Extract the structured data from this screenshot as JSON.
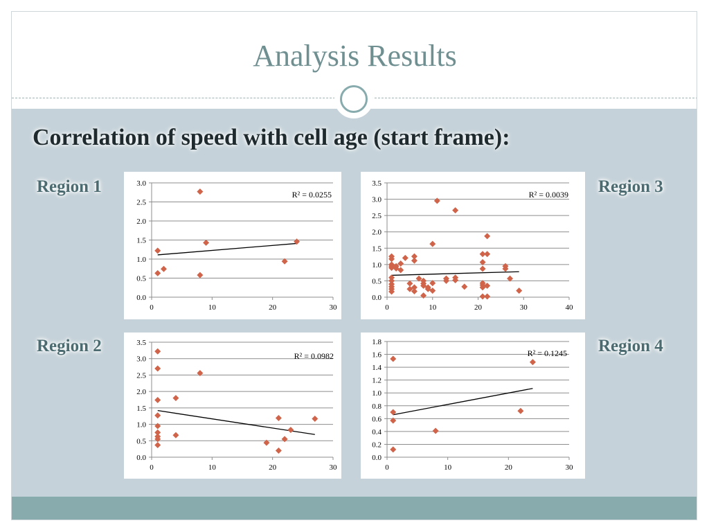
{
  "slide": {
    "title": "Analysis Results",
    "subtitle": "Correlation of speed with cell age (start frame):"
  },
  "regions": [
    "Region 1",
    "Region 2",
    "Region 3",
    "Region 4"
  ],
  "colors": {
    "title": "#6f8f91",
    "band": "#c5d2d9",
    "footer": "#88abad",
    "marker": "#d0644a",
    "trend": "#000000"
  },
  "chart_data": [
    {
      "type": "scatter",
      "region": "Region 1",
      "title": "",
      "xlabel": "",
      "ylabel": "",
      "xlim": [
        0,
        30
      ],
      "ylim": [
        0,
        3.0
      ],
      "xticks": [
        "0",
        "10",
        "20",
        "30"
      ],
      "yticks": [
        "0.0",
        "0.5",
        "1.0",
        "1.5",
        "2.0",
        "2.5",
        "3.0"
      ],
      "grid": "horizontal",
      "r2_label": "R² = 0.0255",
      "points": [
        [
          1,
          1.22
        ],
        [
          1,
          0.63
        ],
        [
          2,
          0.74
        ],
        [
          8,
          2.77
        ],
        [
          8,
          0.58
        ],
        [
          9,
          1.43
        ],
        [
          22,
          0.94
        ],
        [
          24,
          1.46
        ]
      ],
      "trendline": [
        [
          1,
          1.11
        ],
        [
          24,
          1.41
        ]
      ]
    },
    {
      "type": "scatter",
      "region": "Region 2",
      "title": "",
      "xlabel": "",
      "ylabel": "",
      "xlim": [
        0,
        30
      ],
      "ylim": [
        0,
        3.5
      ],
      "xticks": [
        "0",
        "10",
        "20",
        "30"
      ],
      "yticks": [
        "0.0",
        "0.5",
        "1.0",
        "1.5",
        "2.0",
        "2.5",
        "3.0",
        "3.5"
      ],
      "grid": "horizontal",
      "r2_label": "R² = 0.0982",
      "points": [
        [
          1,
          3.22
        ],
        [
          1,
          2.7
        ],
        [
          1,
          1.74
        ],
        [
          1,
          1.27
        ],
        [
          1,
          0.95
        ],
        [
          1,
          0.75
        ],
        [
          1,
          0.63
        ],
        [
          1,
          0.55
        ],
        [
          1,
          0.37
        ],
        [
          4,
          1.8
        ],
        [
          4,
          0.67
        ],
        [
          8,
          2.56
        ],
        [
          19,
          0.44
        ],
        [
          21,
          1.19
        ],
        [
          21,
          0.2
        ],
        [
          22,
          0.55
        ],
        [
          23,
          0.83
        ],
        [
          27,
          1.17
        ]
      ],
      "trendline": [
        [
          1,
          1.42
        ],
        [
          27,
          0.69
        ]
      ]
    },
    {
      "type": "scatter",
      "region": "Region 3",
      "title": "",
      "xlabel": "",
      "ylabel": "",
      "xlim": [
        0,
        40
      ],
      "ylim": [
        0,
        3.5
      ],
      "xticks": [
        "0",
        "10",
        "20",
        "30",
        "40"
      ],
      "yticks": [
        "0.0",
        "0.5",
        "1.0",
        "1.5",
        "2.0",
        "2.5",
        "3.0",
        "3.5"
      ],
      "grid": "horizontal",
      "r2_label": "R² = 0.0039",
      "points": [
        [
          1,
          1.25
        ],
        [
          1,
          1.17
        ],
        [
          1,
          1.0
        ],
        [
          1,
          0.95
        ],
        [
          1,
          0.9
        ],
        [
          1,
          0.6
        ],
        [
          1,
          0.5
        ],
        [
          1,
          0.4
        ],
        [
          1,
          0.32
        ],
        [
          1,
          0.25
        ],
        [
          1,
          0.17
        ],
        [
          2,
          0.95
        ],
        [
          2,
          0.88
        ],
        [
          3,
          1.03
        ],
        [
          3,
          0.83
        ],
        [
          4,
          1.2
        ],
        [
          5,
          0.42
        ],
        [
          5,
          0.25
        ],
        [
          6,
          1.25
        ],
        [
          6,
          1.12
        ],
        [
          6,
          0.3
        ],
        [
          6,
          0.18
        ],
        [
          7,
          0.57
        ],
        [
          8,
          0.5
        ],
        [
          8,
          0.42
        ],
        [
          8,
          0.35
        ],
        [
          8,
          0.05
        ],
        [
          9,
          0.3
        ],
        [
          9,
          0.25
        ],
        [
          10,
          1.63
        ],
        [
          10,
          0.43
        ],
        [
          10,
          0.2
        ],
        [
          11,
          2.95
        ],
        [
          13,
          0.57
        ],
        [
          13,
          0.5
        ],
        [
          15,
          2.66
        ],
        [
          15,
          0.6
        ],
        [
          15,
          0.52
        ],
        [
          17,
          0.32
        ],
        [
          21,
          1.32
        ],
        [
          21,
          1.07
        ],
        [
          21,
          0.87
        ],
        [
          21,
          0.43
        ],
        [
          21,
          0.37
        ],
        [
          21,
          0.3
        ],
        [
          21,
          0.02
        ],
        [
          22,
          1.87
        ],
        [
          22,
          1.32
        ],
        [
          22,
          0.35
        ],
        [
          22,
          0.02
        ],
        [
          26,
          0.95
        ],
        [
          26,
          0.87
        ],
        [
          27,
          0.57
        ],
        [
          29,
          0.2
        ]
      ],
      "trendline": [
        [
          1,
          0.67
        ],
        [
          29,
          0.78
        ]
      ]
    },
    {
      "type": "scatter",
      "region": "Region 4",
      "title": "",
      "xlabel": "",
      "ylabel": "",
      "xlim": [
        0,
        30
      ],
      "ylim": [
        0,
        1.8
      ],
      "xticks": [
        "0",
        "10",
        "20",
        "30"
      ],
      "yticks": [
        "0.0",
        "0.2",
        "0.4",
        "0.6",
        "0.8",
        "1.0",
        "1.2",
        "1.4",
        "1.6",
        "1.8"
      ],
      "grid": "horizontal",
      "r2_label": "R² = 0.1245",
      "points": [
        [
          1,
          1.53
        ],
        [
          1,
          0.7
        ],
        [
          1,
          0.57
        ],
        [
          1,
          0.12
        ],
        [
          8,
          0.41
        ],
        [
          22,
          0.72
        ],
        [
          24,
          1.48
        ]
      ],
      "trendline": [
        [
          1,
          0.66
        ],
        [
          24,
          1.07
        ]
      ]
    }
  ]
}
